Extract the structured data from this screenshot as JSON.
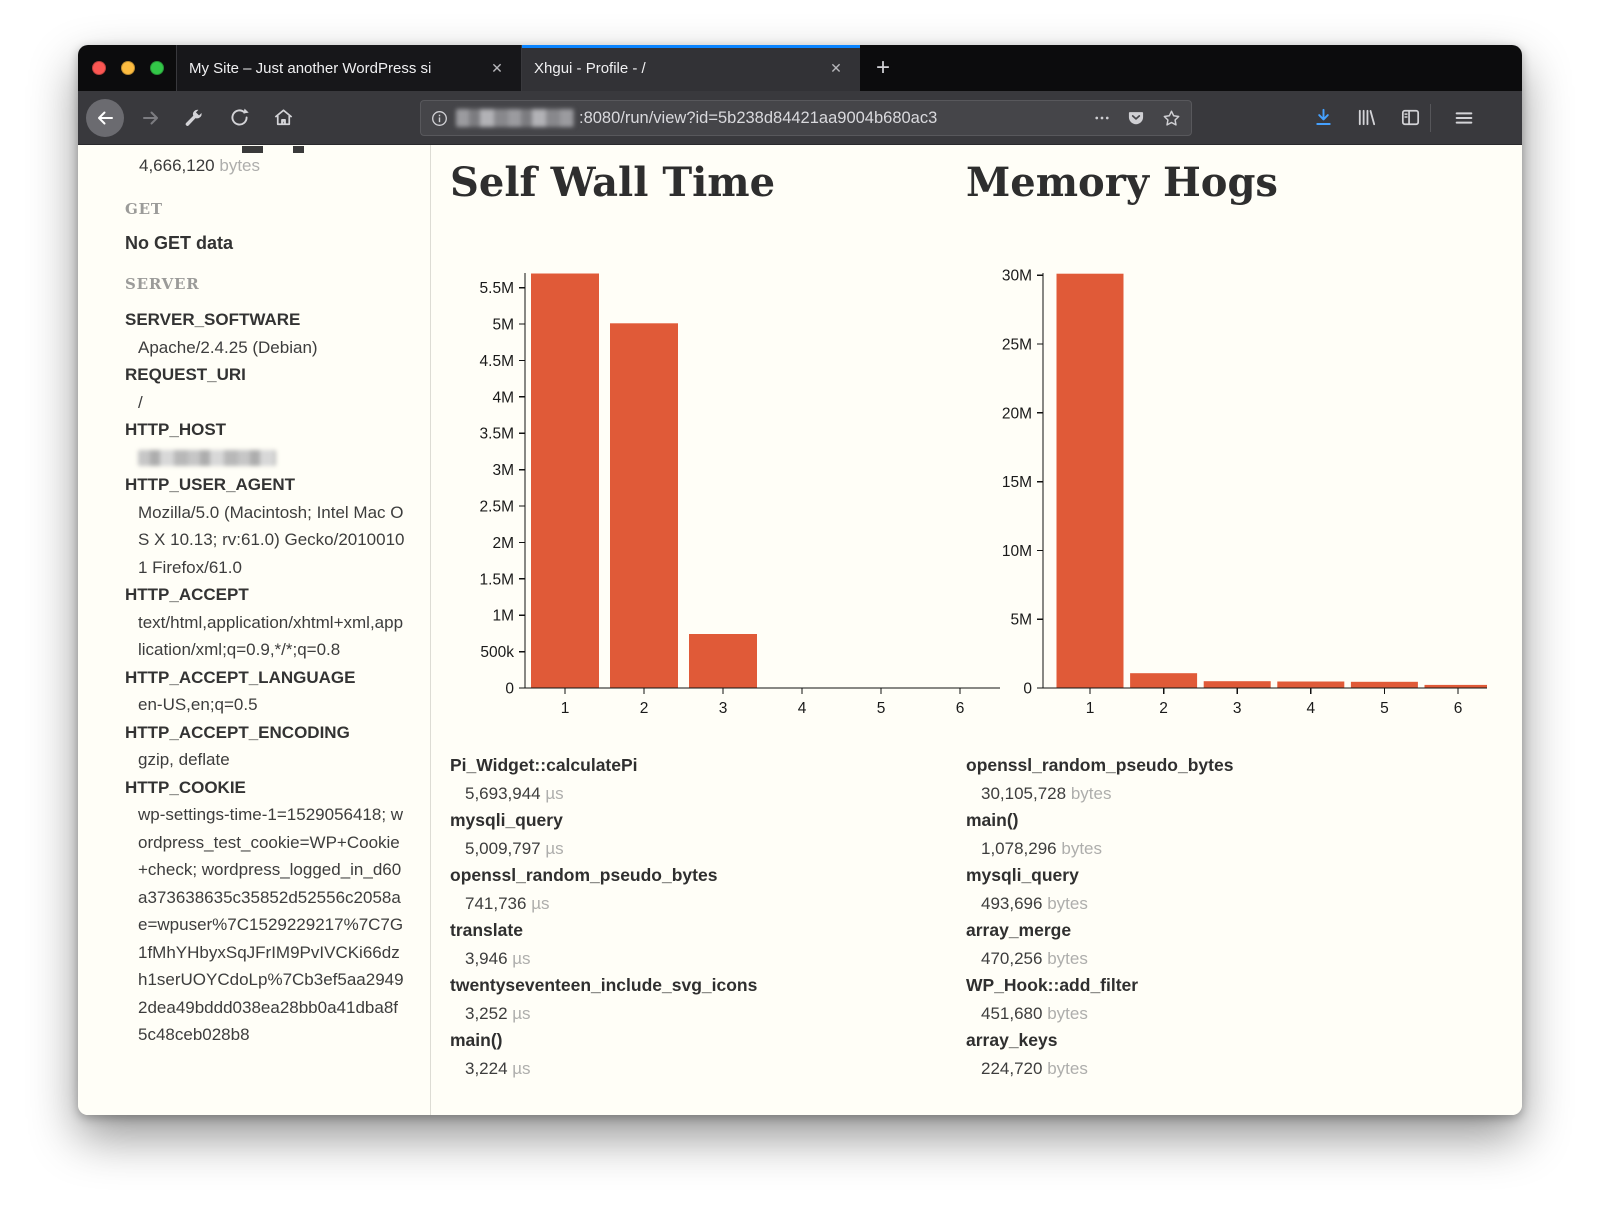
{
  "colors": {
    "accent_blue": "#0a84ff",
    "bar_orange": "#e05a38"
  },
  "browser": {
    "tabs": [
      {
        "title": "My Site – Just another WordPress si",
        "close_label": "✕"
      },
      {
        "title": "Xhgui - Profile - /",
        "close_label": "✕"
      }
    ],
    "new_tab_label": "+",
    "url_visible_path": ":8080/run/view?id=5b238d84421aa9004b680ac3"
  },
  "sidebar": {
    "memory_value": "4,666,120",
    "memory_unit": "bytes",
    "get_heading": "GET",
    "no_get_data": "No GET data",
    "server_heading": "SERVER",
    "server_entries": [
      {
        "key": "SERVER_SOFTWARE",
        "value": "Apache/2.4.25 (Debian)"
      },
      {
        "key": "REQUEST_URI",
        "value": "/"
      },
      {
        "key": "HTTP_HOST",
        "value": "",
        "redacted": true
      },
      {
        "key": "HTTP_USER_AGENT",
        "value": "Mozilla/5.0 (Macintosh; Intel Mac OS X 10.13; rv:61.0) Gecko/20100101 Firefox/61.0"
      },
      {
        "key": "HTTP_ACCEPT",
        "value": "text/html,application/xhtml+xml,application/xml;q=0.9,*/*;q=0.8"
      },
      {
        "key": "HTTP_ACCEPT_LANGUAGE",
        "value": "en-US,en;q=0.5"
      },
      {
        "key": "HTTP_ACCEPT_ENCODING",
        "value": "gzip, deflate"
      },
      {
        "key": "HTTP_COOKIE",
        "value": "wp-settings-time-1=1529056418; wordpress_test_cookie=WP+Cookie+check; wordpress_logged_in_d60a373638635c35852d52556c2058ae=wpuser%7C1529229217%7C7G1fMhYHbyxSqJFrIM9PvIVCKi66dzh1serUOYCdoLp%7Cb3ef5aa29492dea49bddd038ea28bb0a41dba8f5c48ceb028b8"
      }
    ]
  },
  "chart_data": [
    {
      "type": "bar",
      "title": "Self Wall Time",
      "unit": "µs",
      "categories": [
        "1",
        "2",
        "3",
        "4",
        "5",
        "6"
      ],
      "values": [
        5693944,
        5009797,
        741736,
        3946,
        3252,
        3224
      ],
      "items": [
        {
          "name": "Pi_Widget::calculatePi",
          "display": "5,693,944"
        },
        {
          "name": "mysqli_query",
          "display": "5,009,797"
        },
        {
          "name": "openssl_random_pseudo_bytes",
          "display": "741,736"
        },
        {
          "name": "translate",
          "display": "3,946"
        },
        {
          "name": "twentyseventeen_include_svg_icons",
          "display": "3,252"
        },
        {
          "name": "main()",
          "display": "3,224"
        }
      ],
      "ytick_values": [
        0,
        500000,
        1000000,
        1500000,
        2000000,
        2500000,
        3000000,
        3500000,
        4000000,
        4500000,
        5000000,
        5500000
      ],
      "ytick_labels": [
        "0",
        "500k",
        "1M",
        "1.5M",
        "2M",
        "2.5M",
        "3M",
        "3.5M",
        "4M",
        "4.5M",
        "5M",
        "5.5M"
      ],
      "ylim": [
        0,
        5750000
      ],
      "xlabel": "",
      "ylabel": "",
      "grid": false,
      "legend": "none",
      "bar_color": "#e05a38"
    },
    {
      "type": "bar",
      "title": "Memory Hogs",
      "unit": "bytes",
      "categories": [
        "1",
        "2",
        "3",
        "4",
        "5",
        "6"
      ],
      "values": [
        30105728,
        1078296,
        493696,
        470256,
        451680,
        224720
      ],
      "items": [
        {
          "name": "openssl_random_pseudo_bytes",
          "display": "30,105,728"
        },
        {
          "name": "main()",
          "display": "1,078,296"
        },
        {
          "name": "mysqli_query",
          "display": "493,696"
        },
        {
          "name": "array_merge",
          "display": "470,256"
        },
        {
          "name": "WP_Hook::add_filter",
          "display": "451,680"
        },
        {
          "name": "array_keys",
          "display": "224,720"
        }
      ],
      "ytick_values": [
        0,
        5000000,
        10000000,
        15000000,
        20000000,
        25000000,
        30000000
      ],
      "ytick_labels": [
        "0",
        "5M",
        "10M",
        "15M",
        "20M",
        "25M",
        "30M"
      ],
      "ylim": [
        0,
        30360000
      ],
      "xlabel": "",
      "ylabel": "",
      "grid": false,
      "legend": "none",
      "bar_color": "#e05a38"
    }
  ]
}
